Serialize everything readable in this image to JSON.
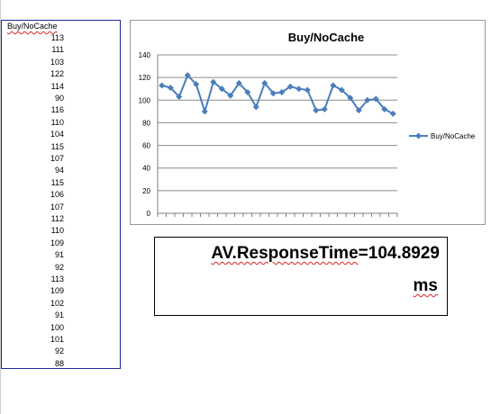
{
  "sheet": {
    "column_header": "Buy/NoCache"
  },
  "chart_data": {
    "type": "line",
    "title": "Buy/NoCache",
    "xlabel": "",
    "ylabel": "",
    "ylim": [
      0,
      140
    ],
    "yticks": [
      0,
      20,
      40,
      60,
      80,
      100,
      120,
      140
    ],
    "grid": true,
    "legend_position": "right",
    "series_color": "#4a7ebb",
    "series": [
      {
        "name": "Buy/NoCache",
        "values": [
          113,
          111,
          103,
          122,
          114,
          90,
          116,
          110,
          104,
          115,
          107,
          94,
          115,
          106,
          107,
          112,
          110,
          109,
          91,
          92,
          113,
          109,
          102,
          91,
          100,
          101,
          92,
          88
        ]
      }
    ]
  },
  "summary": {
    "label": "AV.ResponseTime",
    "equals": "=",
    "value": "104.8929",
    "unit": "ms"
  }
}
